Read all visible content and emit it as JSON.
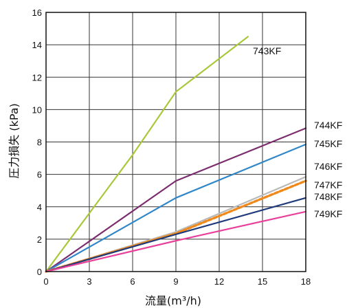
{
  "chart_data": {
    "type": "line",
    "xlabel": "流量(m³/h)",
    "ylabel": "圧力損失 (kPa)",
    "xlim": [
      0,
      18
    ],
    "ylim": [
      0,
      16
    ],
    "x_ticks": [
      "0",
      "3",
      "6",
      "9",
      "12",
      "15",
      "18"
    ],
    "y_ticks": [
      "0",
      "2",
      "4",
      "6",
      "8",
      "10",
      "12",
      "14",
      "16"
    ],
    "grid": true,
    "series": [
      {
        "name": "743KF",
        "color": "#a8c83a",
        "dash": false,
        "points": [
          [
            0,
            0
          ],
          [
            6,
            7.2
          ],
          [
            9,
            11.1
          ],
          [
            14,
            14.5
          ]
        ]
      },
      {
        "name": "744KF",
        "color": "#7b2d6e",
        "dash": false,
        "points": [
          [
            0,
            0
          ],
          [
            9,
            5.6
          ],
          [
            18,
            8.85
          ]
        ]
      },
      {
        "name": "745KF",
        "color": "#2f86c8",
        "dash": false,
        "points": [
          [
            0,
            0
          ],
          [
            9,
            4.55
          ],
          [
            18,
            7.85
          ]
        ]
      },
      {
        "name": "746KF",
        "color": "#b9b9b9",
        "dash": false,
        "points": [
          [
            0,
            0
          ],
          [
            9,
            2.45
          ],
          [
            18,
            5.85
          ]
        ]
      },
      {
        "name": "747KF",
        "color": "#f08a1c",
        "dash": true,
        "points": [
          [
            0,
            0
          ],
          [
            9,
            2.35
          ],
          [
            18,
            5.6
          ]
        ]
      },
      {
        "name": "748KF",
        "color": "#1f3a7a",
        "dash": false,
        "points": [
          [
            0,
            0
          ],
          [
            9,
            2.3
          ],
          [
            18,
            4.55
          ]
        ]
      },
      {
        "name": "749KF",
        "color": "#e8409a",
        "dash": false,
        "points": [
          [
            0,
            0
          ],
          [
            9,
            1.9
          ],
          [
            18,
            3.7
          ]
        ]
      }
    ]
  }
}
